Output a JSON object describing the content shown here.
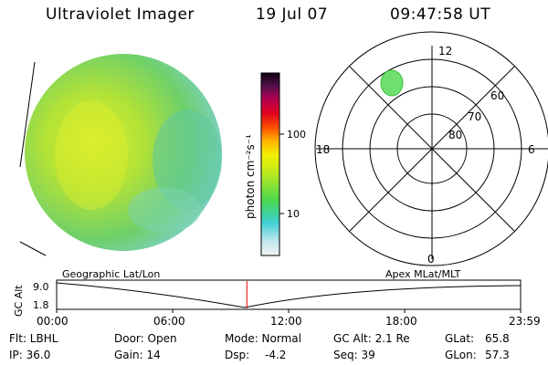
{
  "header": {
    "instrument": "Ultraviolet Imager",
    "date": "19 Jul 07",
    "time": "09:47:58 UT"
  },
  "colorbar": {
    "label": "photon cm⁻²s⁻¹",
    "ticks": [
      "100",
      "10"
    ],
    "scale": "log"
  },
  "polar_plot": {
    "mlt_labels": {
      "top": "12",
      "left": "18",
      "right": "6",
      "bottom": "0"
    },
    "lat_labels": [
      "60",
      "70",
      "80"
    ]
  },
  "timeline": {
    "left_label": "Geographic Lat/Lon",
    "right_label": "Apex MLat/MLT",
    "axis_title": "GC Alt",
    "y_ticks": [
      "9.0",
      "1.8"
    ],
    "x_ticks": [
      "00:00",
      "06:00",
      "12:00",
      "18:00",
      "23:59"
    ],
    "marker_color": "#ff0000",
    "marker_time_fraction": 0.41
  },
  "info": {
    "filter": "Flt: LBHL",
    "ip": "IP: 36.0",
    "door": "Door: Open",
    "gain": "Gain: 14",
    "mode": "Mode: Normal",
    "dsp_label": "Dsp:",
    "dsp_value": "-4.2",
    "gc_alt": "GC Alt: 2.1 Re",
    "seq": "Seq: 39",
    "glat_label": "GLat:",
    "glat_value": "65.8",
    "glon_label": "GLon:",
    "glon_value": "57.3"
  }
}
